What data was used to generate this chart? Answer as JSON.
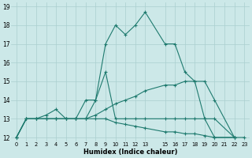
{
  "xlabel": "Humidex (Indice chaleur)",
  "bg_color": "#cce8e8",
  "line_color": "#1e7a6e",
  "grid_color": "#aacfcf",
  "xlim": [
    -0.5,
    23.5
  ],
  "ylim": [
    11.8,
    19.2
  ],
  "xtick_positions": [
    0,
    1,
    2,
    3,
    4,
    5,
    6,
    7,
    8,
    9,
    10,
    11,
    12,
    13,
    15,
    16,
    17,
    18,
    19,
    20,
    21,
    22,
    23
  ],
  "xtick_labels": [
    "0",
    "1",
    "2",
    "3",
    "4",
    "5",
    "6",
    "7",
    "8",
    "9",
    "10",
    "11",
    "12",
    "13",
    "15",
    "16",
    "17",
    "18",
    "19",
    "20",
    "21",
    "22",
    "23"
  ],
  "ytick_positions": [
    12,
    13,
    14,
    15,
    16,
    17,
    18,
    19
  ],
  "ytick_labels": [
    "12",
    "13",
    "14",
    "15",
    "16",
    "17",
    "18",
    "19"
  ],
  "s1_x": [
    0,
    1,
    2,
    3,
    4,
    5,
    6,
    7,
    8,
    9,
    10,
    11,
    12,
    13,
    15,
    16,
    17,
    18,
    19,
    20,
    22
  ],
  "s1_y": [
    12,
    13,
    13,
    13.2,
    13.5,
    13,
    13,
    14,
    14,
    17,
    18,
    17.5,
    18,
    18.7,
    17,
    17,
    15.5,
    15,
    13,
    12,
    12
  ],
  "s2_x": [
    0,
    1,
    2,
    3,
    4,
    5,
    6,
    7,
    8,
    9,
    10,
    11,
    12,
    13,
    15,
    16,
    17,
    18,
    19,
    20,
    22
  ],
  "s2_y": [
    12,
    13,
    13,
    13,
    13,
    13,
    13,
    13,
    13.2,
    13.5,
    13.8,
    14,
    14.2,
    14.5,
    14.8,
    14.8,
    15,
    15,
    15,
    14,
    12
  ],
  "s3_x": [
    0,
    1,
    2,
    3,
    4,
    5,
    6,
    7,
    8,
    9,
    10,
    11,
    12,
    13,
    15,
    16,
    17,
    18,
    19,
    20,
    22,
    23
  ],
  "s3_y": [
    12,
    13,
    13,
    13,
    13,
    13,
    13,
    13,
    13,
    13,
    12.8,
    12.7,
    12.6,
    12.5,
    12.3,
    12.3,
    12.2,
    12.2,
    12.1,
    12,
    12,
    12
  ],
  "s4_x": [
    0,
    1,
    2,
    3,
    4,
    5,
    6,
    7,
    8,
    9,
    10,
    11,
    12,
    13,
    15,
    16,
    17,
    18,
    19,
    20,
    22
  ],
  "s4_y": [
    12,
    13,
    13,
    13,
    13,
    13,
    13,
    13,
    14,
    15.5,
    13,
    13,
    13,
    13,
    13,
    13,
    13,
    13,
    13,
    13,
    12
  ]
}
